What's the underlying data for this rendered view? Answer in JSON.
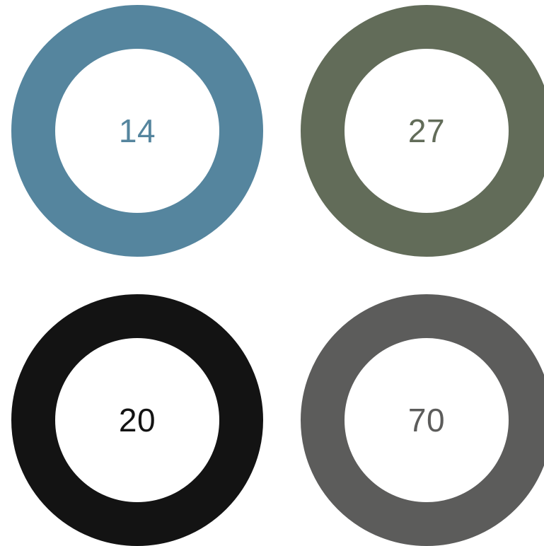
{
  "rings": [
    {
      "label": "14",
      "color": "#55859E"
    },
    {
      "label": "27",
      "color": "#626C59"
    },
    {
      "label": "20",
      "color": "#131313"
    },
    {
      "label": "70",
      "color": "#5C5C5B"
    }
  ]
}
